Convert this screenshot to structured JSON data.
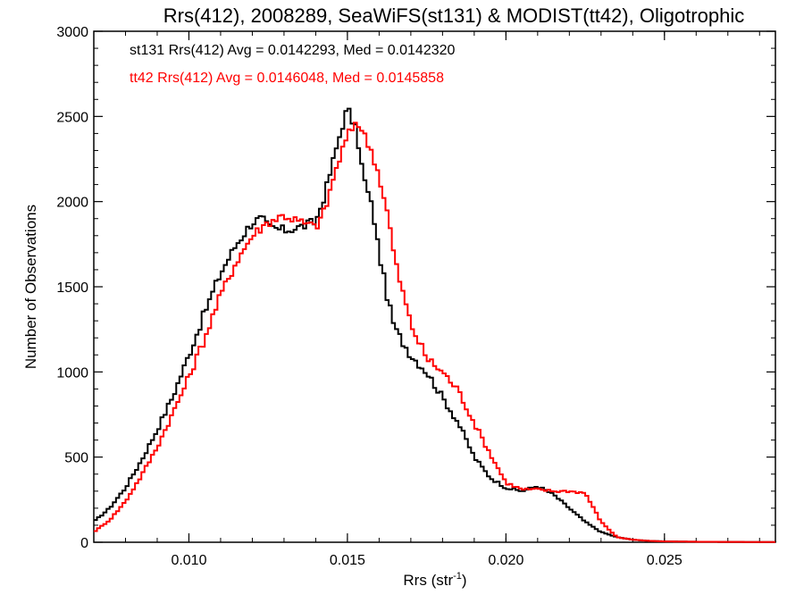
{
  "chart_data": {
    "type": "line",
    "step": true,
    "title": "Rrs(412), 2008289, SeaWiFS(st131) & MODIST(tt42), Oligotrophic",
    "xlabel": "Rrs (str",
    "xlabel_sup": "-1",
    "xlabel_suffix": ")",
    "ylabel": "Number of Observations",
    "xlim": [
      0.007,
      0.0285
    ],
    "ylim": [
      0,
      3000
    ],
    "xticks": [
      0.01,
      0.015,
      0.02,
      0.025
    ],
    "xtick_labels": [
      "0.010",
      "0.015",
      "0.020",
      "0.025"
    ],
    "yticks": [
      0,
      500,
      1000,
      1500,
      2000,
      2500,
      3000
    ],
    "ytick_labels": [
      "0",
      "500",
      "1000",
      "1500",
      "2000",
      "2500",
      "3000"
    ],
    "grid": false,
    "legend_position": "top-left",
    "annotations": [
      "st131 Rrs(412) Avg = 0.0142293, Med = 0.0142320",
      "tt42 Rrs(412) Avg = 0.0146048, Med = 0.0145858"
    ],
    "series": [
      {
        "color": "#000000",
        "x": [
          0.007,
          0.0075,
          0.008,
          0.0085,
          0.009,
          0.0095,
          0.01,
          0.0105,
          0.011,
          0.0115,
          0.012,
          0.0123,
          0.0125,
          0.013,
          0.0135,
          0.014,
          0.0143,
          0.0145,
          0.0148,
          0.015,
          0.0153,
          0.0155,
          0.0158,
          0.016,
          0.0163,
          0.0165,
          0.017,
          0.0175,
          0.018,
          0.0185,
          0.019,
          0.0195,
          0.02,
          0.0205,
          0.021,
          0.0215,
          0.022,
          0.0225,
          0.023,
          0.0235,
          0.024,
          0.0245,
          0.025,
          0.026,
          0.027,
          0.0285
        ],
        "y": [
          120,
          200,
          320,
          480,
          660,
          860,
          1100,
          1350,
          1580,
          1750,
          1880,
          1900,
          1850,
          1830,
          1850,
          1880,
          2050,
          2200,
          2420,
          2550,
          2400,
          2150,
          1950,
          1700,
          1400,
          1250,
          1100,
          1000,
          850,
          700,
          500,
          380,
          320,
          300,
          330,
          280,
          200,
          120,
          60,
          30,
          15,
          8,
          5,
          3,
          2,
          1
        ]
      },
      {
        "color": "#ff0000",
        "x": [
          0.007,
          0.0075,
          0.008,
          0.0085,
          0.009,
          0.0095,
          0.01,
          0.0105,
          0.011,
          0.0115,
          0.012,
          0.0123,
          0.0125,
          0.013,
          0.0135,
          0.014,
          0.0143,
          0.0145,
          0.0148,
          0.015,
          0.0153,
          0.0155,
          0.0158,
          0.016,
          0.0163,
          0.0165,
          0.017,
          0.0175,
          0.018,
          0.0185,
          0.019,
          0.0195,
          0.02,
          0.0205,
          0.021,
          0.0215,
          0.022,
          0.0225,
          0.023,
          0.0235,
          0.024,
          0.0245,
          0.025,
          0.026,
          0.027,
          0.0285
        ],
        "y": [
          60,
          130,
          240,
          390,
          560,
          760,
          970,
          1200,
          1450,
          1650,
          1800,
          1850,
          1880,
          1920,
          1880,
          1850,
          1950,
          2100,
          2280,
          2380,
          2480,
          2400,
          2280,
          2150,
          1900,
          1650,
          1280,
          1080,
          1000,
          890,
          700,
          520,
          350,
          310,
          310,
          300,
          300,
          290,
          120,
          30,
          15,
          8,
          5,
          3,
          2,
          1
        ]
      }
    ]
  }
}
